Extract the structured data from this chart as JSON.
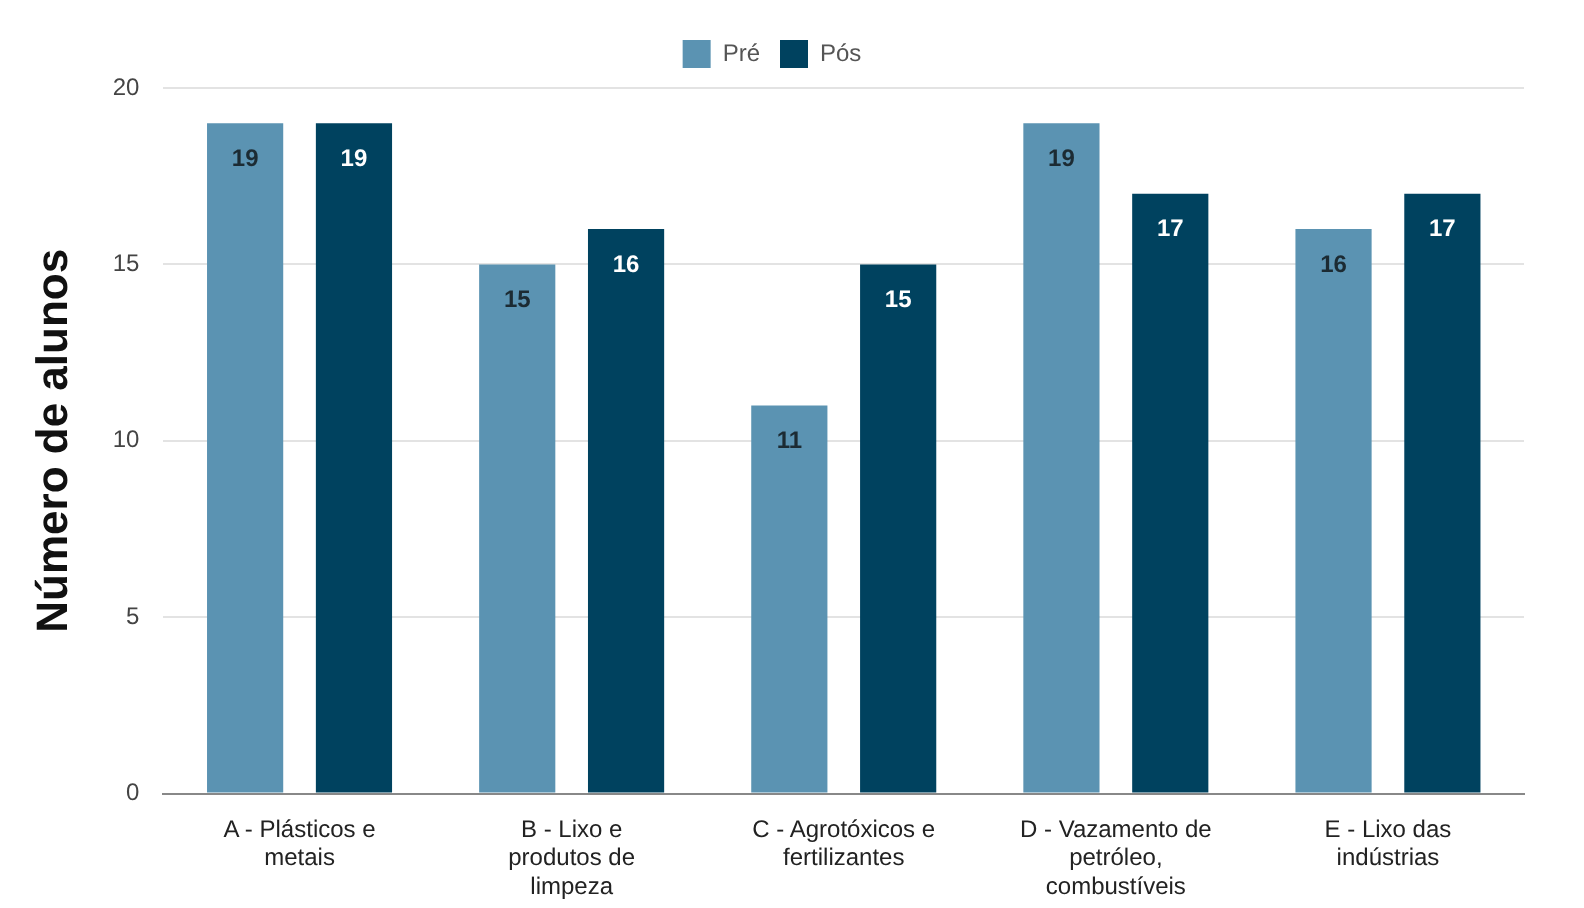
{
  "chart_data": {
    "type": "bar",
    "ylabel": "Número de alunos",
    "categories": [
      "A - Plásticos e metais",
      "B - Lixo e produtos de limpeza",
      "C - Agrotóxicos e fertilizantes",
      "D - Vazamento de petróleo, combustíveis",
      "E - Lixo das indústrias"
    ],
    "series": [
      {
        "name": "Pré",
        "color": "#5b93b2",
        "values": [
          19,
          15,
          11,
          19,
          16
        ]
      },
      {
        "name": "Pós",
        "color": "#00425f",
        "values": [
          19,
          16,
          15,
          17,
          17
        ]
      }
    ],
    "ylim": [
      0,
      20
    ],
    "yticks": [
      0,
      5,
      10,
      15,
      20
    ],
    "grid": "y",
    "legend": "top",
    "data_labels": true
  }
}
